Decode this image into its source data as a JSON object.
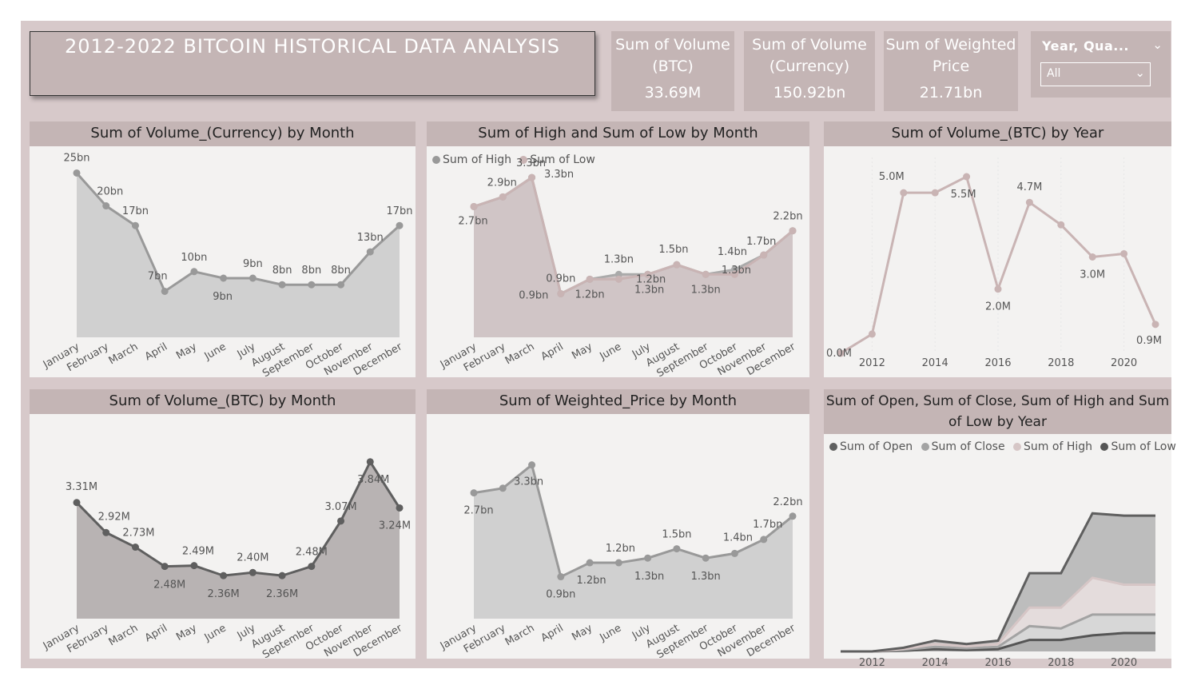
{
  "report_title": "2012-2022 BITCOIN HISTORICAL DATA ANALYSIS",
  "kpis": [
    {
      "label": "Sum of Volume (BTC)",
      "value": "33.69M"
    },
    {
      "label": "Sum of Volume (Currency)",
      "value": "150.92bn"
    },
    {
      "label": "Sum of Weighted Price",
      "value": "21.71bn"
    }
  ],
  "slicer": {
    "title": "Year, Qua...",
    "value": "All"
  },
  "colors": {
    "canvas": "#d7c9ca",
    "header": "#c4b5b5",
    "panel": "#f3f2f1",
    "grey_line": "#999999",
    "pink_line": "#c9b4b4",
    "dark_line": "#606060"
  },
  "icons": {
    "collapse": "chevron-down-icon",
    "dropdown": "chevron-down-icon"
  },
  "chart_data": [
    {
      "id": "vc_month",
      "type": "area",
      "title": "Sum of Volume_(Currency) by Month",
      "categories": [
        "January",
        "February",
        "March",
        "April",
        "May",
        "June",
        "July",
        "August",
        "September",
        "October",
        "November",
        "December"
      ],
      "series": [
        {
          "values": [
            25,
            20,
            17,
            7,
            10,
            9,
            9,
            8,
            8,
            8,
            13,
            17
          ]
        }
      ],
      "labels": [
        "25bn",
        "20bn",
        "17bn",
        "7bn",
        "10bn",
        "9bn",
        "9bn",
        "8bn",
        "8bn",
        "8bn",
        "13bn",
        "17bn"
      ],
      "ylim": [
        0,
        27
      ]
    },
    {
      "id": "hl_month",
      "type": "area",
      "title": "Sum of High and Sum of Low by Month",
      "categories": [
        "January",
        "February",
        "March",
        "April",
        "May",
        "June",
        "July",
        "August",
        "September",
        "October",
        "November",
        "December"
      ],
      "series": [
        {
          "name": "Sum of High",
          "values": [
            2.7,
            2.9,
            3.3,
            0.9,
            1.2,
            1.3,
            1.3,
            1.5,
            1.3,
            1.4,
            1.7,
            2.2
          ]
        },
        {
          "name": "Sum of Low",
          "values": [
            2.7,
            2.9,
            3.3,
            0.9,
            1.2,
            1.2,
            1.3,
            1.5,
            1.3,
            1.3,
            1.7,
            2.2
          ]
        }
      ],
      "labels": [
        "2.7bn",
        "2.9bn",
        "3.3bn",
        "3.3bn",
        "0.9bn",
        "0.9bn",
        "1.2bn",
        "1.3bn",
        "1.2bn",
        "1.3bn",
        "1.5bn",
        "1.3bn",
        "1.4bn",
        "1.3bn",
        "1.7bn",
        "2.2bn"
      ],
      "ylim": [
        0,
        3.5
      ]
    },
    {
      "id": "vb_year",
      "type": "line",
      "title": "Sum of Volume_(BTC) by Year",
      "x": [
        2011,
        2012,
        2013,
        2014,
        2015,
        2016,
        2017,
        2018,
        2019,
        2020,
        2021
      ],
      "series": [
        {
          "values": [
            0.0,
            0.6,
            5.0,
            5.0,
            5.5,
            2.0,
            4.7,
            4.0,
            3.0,
            3.1,
            0.9
          ]
        }
      ],
      "labels": [
        "0.0M",
        "5.0M",
        "5.5M",
        "4.7M",
        "2.0M",
        "3.0M",
        "0.9M"
      ],
      "xticks": [
        "2012",
        "2014",
        "2016",
        "2018",
        "2020"
      ],
      "ylim": [
        0,
        5.8
      ]
    },
    {
      "id": "vb_month",
      "type": "area",
      "title": "Sum of Volume_(BTC) by Month",
      "categories": [
        "January",
        "February",
        "March",
        "April",
        "May",
        "June",
        "July",
        "August",
        "September",
        "October",
        "November",
        "December"
      ],
      "series": [
        {
          "values": [
            3.31,
            2.92,
            2.73,
            2.48,
            2.49,
            2.36,
            2.4,
            2.36,
            2.48,
            3.07,
            3.84,
            3.24
          ]
        }
      ],
      "labels": [
        "3.31M",
        "2.92M",
        "2.73M",
        "2.48M",
        "2.49M",
        "2.36M",
        "2.40M",
        "2.36M",
        "2.48M",
        "3.07M",
        "3.84M",
        "3.24M"
      ],
      "ylim": [
        1.8,
        3.9
      ]
    },
    {
      "id": "wp_month",
      "type": "area",
      "title": "Sum of Weighted_Price by Month",
      "categories": [
        "January",
        "February",
        "March",
        "April",
        "May",
        "June",
        "July",
        "August",
        "September",
        "October",
        "November",
        "December"
      ],
      "series": [
        {
          "values": [
            2.7,
            2.8,
            3.3,
            0.9,
            1.2,
            1.2,
            1.3,
            1.5,
            1.3,
            1.4,
            1.7,
            2.2
          ]
        }
      ],
      "labels": [
        "2.7bn",
        "3.3bn",
        "0.9bn",
        "1.2bn",
        "1.2bn",
        "1.3bn",
        "1.5bn",
        "1.3bn",
        "1.4bn",
        "1.7bn",
        "2.2bn"
      ],
      "ylim": [
        0,
        3.5
      ]
    },
    {
      "id": "ochl_year",
      "type": "area",
      "title": "Sum of Open, Sum of Close, Sum of High and Sum of Low by Year",
      "x": [
        2011,
        2012,
        2013,
        2014,
        2015,
        2016,
        2017,
        2018,
        2019,
        2020,
        2021
      ],
      "series": [
        {
          "name": "Sum of Open",
          "values": [
            0.0,
            0.0,
            0.05,
            0.15,
            0.1,
            0.15,
            1.5,
            1.5,
            2.8,
            3.0,
            3.0
          ]
        },
        {
          "name": "Sum of Close",
          "values": [
            0.0,
            0.0,
            0.04,
            0.12,
            0.08,
            0.12,
            0.8,
            0.9,
            1.6,
            1.3,
            1.3
          ]
        },
        {
          "name": "Sum of High",
          "values": [
            0.0,
            0.0,
            0.04,
            0.1,
            0.08,
            0.1,
            0.6,
            0.5,
            0.9,
            0.8,
            0.8
          ]
        },
        {
          "name": "Sum of Low",
          "values": [
            0.0,
            0.0,
            0.03,
            0.1,
            0.06,
            0.1,
            0.5,
            0.5,
            0.7,
            0.8,
            0.8
          ]
        }
      ],
      "xticks": [
        "2012",
        "2014",
        "2016",
        "2018",
        "2020"
      ],
      "ylim": [
        0,
        7.5
      ]
    }
  ]
}
